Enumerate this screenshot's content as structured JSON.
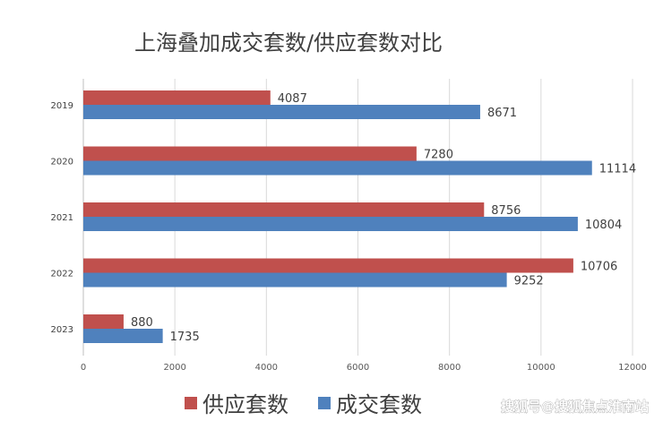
{
  "chart_data": {
    "type": "bar",
    "orientation": "horizontal",
    "title": "上海叠加成交套数/供应套数对比",
    "categories": [
      "2019",
      "2020",
      "2021",
      "2022",
      "2023"
    ],
    "series": [
      {
        "name": "供应套数",
        "color": "#c0504d",
        "values": [
          4087,
          7280,
          8756,
          10706,
          880
        ]
      },
      {
        "name": "成交套数",
        "color": "#4f81bd",
        "values": [
          8671,
          11114,
          10804,
          9252,
          1735
        ]
      }
    ],
    "x_ticks": [
      "0",
      "2000",
      "4000",
      "6000",
      "8000",
      "10000",
      "12000"
    ],
    "xlim": [
      0,
      12000
    ],
    "grid": "vertical",
    "legend_position": "bottom-center",
    "xlabel": "",
    "ylabel": ""
  },
  "watermark": "搜狐号@搜狐焦点淮南站"
}
